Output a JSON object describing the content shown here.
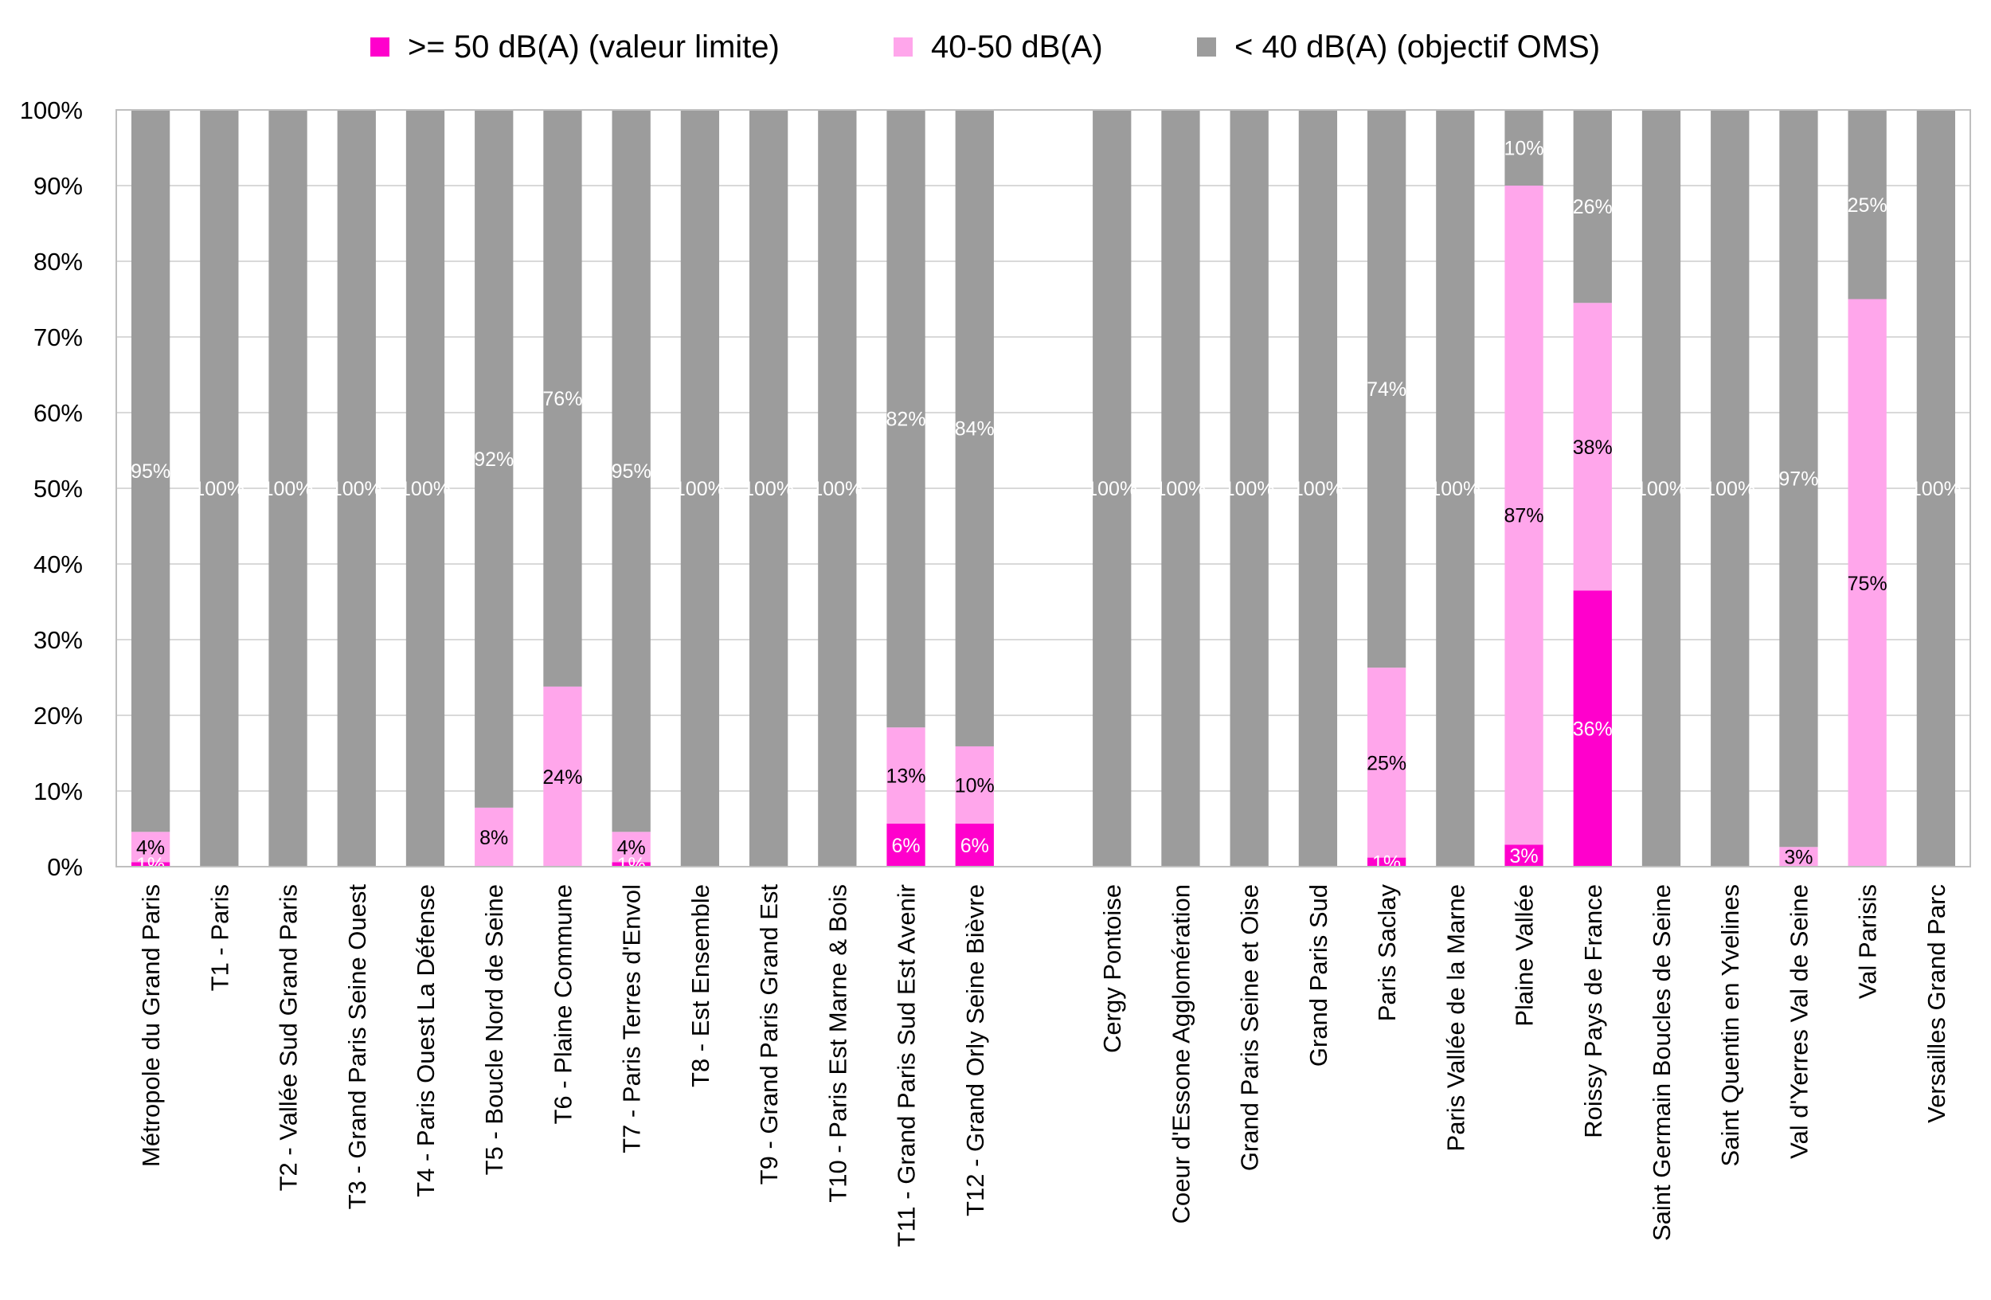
{
  "chart_data": {
    "type": "bar",
    "stacked": true,
    "percent": true,
    "ylim": [
      0,
      100
    ],
    "yticks": [
      "0%",
      "10%",
      "20%",
      "30%",
      "40%",
      "50%",
      "60%",
      "70%",
      "80%",
      "90%",
      "100%"
    ],
    "grid": true,
    "legend_position": "top",
    "categories": [
      "Métropole du Grand Paris",
      "T1 - Paris",
      "T2 - Vallée Sud Grand Paris",
      "T3 - Grand Paris Seine Ouest",
      "T4 - Paris Ouest La Défense",
      "T5 - Boucle Nord de Seine",
      "T6 - Plaine Commune",
      "T7 - Paris Terres d'Envol",
      "T8 - Est Ensemble",
      "T9 - Grand Paris Grand Est",
      "T10 - Paris Est Marne & Bois",
      "T11 - Grand Paris Sud Est Avenir",
      "T12 - Grand Orly Seine Bièvre",
      "",
      "Cergy Pontoise",
      "Coeur d'Essone Agglomération",
      "Grand Paris Seine et Oise",
      "Grand Paris Sud",
      "Paris Saclay",
      "Paris Vallée de la Marne",
      "Plaine Vallée",
      "Roissy Pays de France",
      "Saint Germain Boucles de Seine",
      "Saint Quentin en Yvelines",
      "Val d'Yerres Val de Seine",
      "Val Parisis",
      "Versailles Grand Parc"
    ],
    "series": [
      {
        "name": ">= 50 dB(A) (valeur limite)",
        "color": "#ff00cc",
        "label_color": "#ffffff",
        "values": [
          0.6,
          0,
          0,
          0,
          0,
          0,
          0,
          0.6,
          0,
          0,
          0,
          5.7,
          5.7,
          0,
          0,
          0,
          0,
          0,
          1.2,
          0,
          2.9,
          36.5,
          0,
          0,
          0,
          0,
          0
        ],
        "labels": [
          "1%",
          "",
          "",
          "",
          "",
          "",
          "",
          "1%",
          "",
          "",
          "",
          "6%",
          "6%",
          "",
          "",
          "",
          "",
          "",
          "1%",
          "",
          "3%",
          "36%",
          "",
          "",
          "",
          "",
          ""
        ]
      },
      {
        "name": "40-50 dB(A)",
        "color": "#ffa6eb",
        "label_color": "#000000",
        "values": [
          4.0,
          0,
          0,
          0,
          0,
          7.8,
          23.8,
          4.0,
          0,
          0,
          0,
          12.7,
          10.2,
          0,
          0,
          0,
          0,
          0,
          25.1,
          0,
          87.1,
          38.0,
          0,
          0,
          2.6,
          75.0,
          0
        ],
        "labels": [
          "4%",
          "",
          "",
          "",
          "",
          "8%",
          "24%",
          "4%",
          "",
          "",
          "",
          "13%",
          "10%",
          "",
          "",
          "",
          "",
          "",
          "25%",
          "",
          "87%",
          "38%",
          "",
          "",
          "3%",
          "75%",
          ""
        ]
      },
      {
        "name": "< 40 dB(A) (objectif OMS)",
        "color": "#9c9c9c",
        "label_color": "#ffffff",
        "values": [
          95.4,
          100,
          100,
          100,
          100,
          92.2,
          76.2,
          95.4,
          100,
          100,
          100,
          81.6,
          84.1,
          0,
          100,
          100,
          100,
          100,
          73.7,
          100,
          10.0,
          25.5,
          100,
          100,
          97.4,
          25.0,
          100
        ],
        "labels": [
          "95%",
          "100%",
          "100%",
          "100%",
          "100%",
          "92%",
          "76%",
          "95%",
          "100%",
          "100%",
          "100%",
          "82%",
          "84%",
          "",
          "100%",
          "100%",
          "100%",
          "100%",
          "74%",
          "100%",
          "10%",
          "26%",
          "100%",
          "100%",
          "97%",
          "25%",
          "100%"
        ]
      }
    ]
  }
}
